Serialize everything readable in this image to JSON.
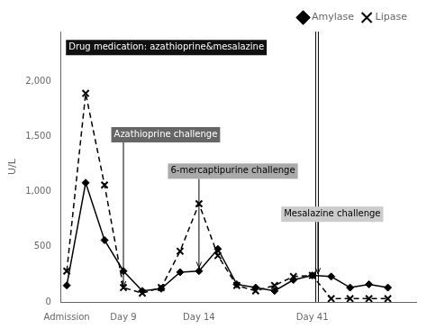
{
  "chart_data": {
    "type": "line",
    "x": [
      0,
      1,
      2,
      3,
      4,
      5,
      6,
      7,
      8,
      9,
      10,
      11,
      12,
      13,
      14,
      15,
      16,
      17
    ],
    "series": [
      {
        "name": "Amylase",
        "color": "#000000",
        "marker": "diamond",
        "line_style": "solid",
        "values": [
          150,
          1080,
          560,
          280,
          100,
          120,
          270,
          280,
          480,
          160,
          130,
          100,
          200,
          240,
          230,
          130,
          160,
          130
        ]
      },
      {
        "name": "Lipase",
        "color": "#000000",
        "marker": "x",
        "line_style": "dashed",
        "values": [
          280,
          1890,
          1060,
          130,
          80,
          130,
          460,
          890,
          420,
          150,
          100,
          150,
          230,
          240,
          30,
          30,
          30,
          30
        ]
      }
    ],
    "xlim": [
      -0.3,
      18.5
    ],
    "xticks": [
      {
        "value": 0,
        "label": "Admission"
      },
      {
        "value": 3,
        "label": "Day 9"
      },
      {
        "value": 7,
        "label": "Day 14"
      },
      {
        "value": 13,
        "label": "Day 41"
      }
    ],
    "ylim": [
      0,
      2450
    ],
    "yticks": [
      0,
      500,
      {
        "value": 1000,
        "label": "1,000"
      },
      {
        "value": 1500,
        "label": "1,500"
      },
      {
        "value": 2000,
        "label": "2,000"
      }
    ],
    "ylabel": "U/L",
    "vline": 13.25,
    "annotations": [
      {
        "text": "Drug medication: azathioprine&mesalazine",
        "x": 0.1,
        "y": 2350,
        "color": "#111111"
      },
      {
        "text": "Azathioprine challenge",
        "x": 2.5,
        "y": 1560,
        "arrow_x": 3.0,
        "arrow_y": 135,
        "color": "#666666"
      },
      {
        "text": "6-mercaptipurine challenge",
        "x": 5.5,
        "y": 1230,
        "arrow_x": 7.0,
        "arrow_y": 310,
        "color": "#aaaaaa"
      },
      {
        "text": "Mesalazine challenge",
        "x": 11.5,
        "y": 840,
        "arrow_x": 13.3,
        "arrow_y": 255,
        "color": "#cccccc"
      }
    ],
    "grid": false,
    "legend": "upper right"
  }
}
